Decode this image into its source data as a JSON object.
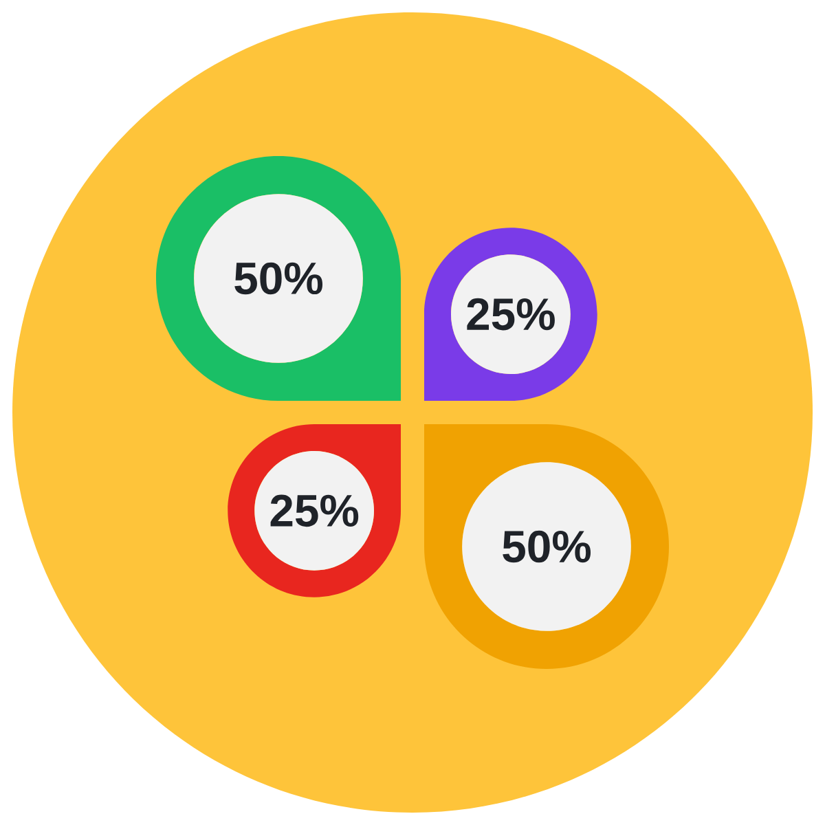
{
  "chart_data": {
    "type": "other",
    "categories": [
      null,
      null,
      null,
      null
    ],
    "values": [
      50,
      25,
      25,
      50
    ],
    "colors": [
      "#1abf66",
      "#7a3be8",
      "#e8261f",
      "#f0a202"
    ],
    "value_labels": [
      "50%",
      "25%",
      "25%",
      "50%"
    ]
  }
}
